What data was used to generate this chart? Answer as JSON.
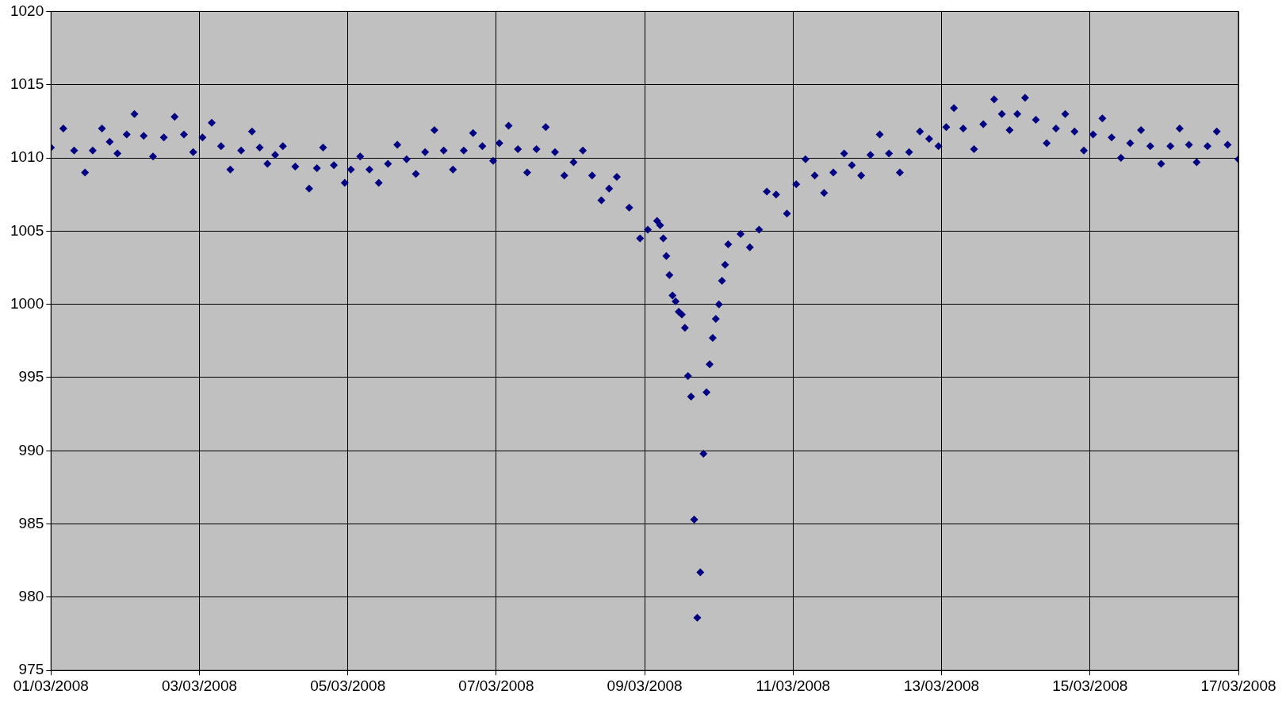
{
  "chart_data": {
    "type": "scatter",
    "marker": "diamond",
    "grid": true,
    "xlim": [
      "2008-03-01",
      "2008-03-17"
    ],
    "xticks": [
      {
        "value": "2008-03-01",
        "label": "01/03/2008"
      },
      {
        "value": "2008-03-03",
        "label": "03/03/2008"
      },
      {
        "value": "2008-03-05",
        "label": "05/03/2008"
      },
      {
        "value": "2008-03-07",
        "label": "07/03/2008"
      },
      {
        "value": "2008-03-09",
        "label": "09/03/2008"
      },
      {
        "value": "2008-03-11",
        "label": "11/03/2008"
      },
      {
        "value": "2008-03-13",
        "label": "13/03/2008"
      },
      {
        "value": "2008-03-15",
        "label": "15/03/2008"
      },
      {
        "value": "2008-03-17",
        "label": "17/03/2008"
      }
    ],
    "ylim": [
      975,
      1020
    ],
    "yticks": [
      975,
      980,
      985,
      990,
      995,
      1000,
      1005,
      1010,
      1015,
      1020
    ],
    "series": [
      {
        "color": "#000080",
        "x": [
          "2008-03-01T00:00",
          "2008-03-01T04:00",
          "2008-03-01T07:30",
          "2008-03-01T11:00",
          "2008-03-01T13:30",
          "2008-03-01T16:30",
          "2008-03-01T19:00",
          "2008-03-01T21:30",
          "2008-03-02T00:30",
          "2008-03-02T03:00",
          "2008-03-02T06:00",
          "2008-03-02T09:00",
          "2008-03-02T12:30",
          "2008-03-02T16:00",
          "2008-03-02T19:00",
          "2008-03-02T22:00",
          "2008-03-03T01:00",
          "2008-03-03T04:00",
          "2008-03-03T07:00",
          "2008-03-03T10:00",
          "2008-03-03T13:30",
          "2008-03-03T17:00",
          "2008-03-03T19:30",
          "2008-03-03T22:00",
          "2008-03-04T00:30",
          "2008-03-04T03:00",
          "2008-03-04T07:00",
          "2008-03-04T11:30",
          "2008-03-04T14:00",
          "2008-03-04T16:00",
          "2008-03-04T19:30",
          "2008-03-04T23:00",
          "2008-03-05T01:00",
          "2008-03-05T04:00",
          "2008-03-05T07:00",
          "2008-03-05T10:00",
          "2008-03-05T13:00",
          "2008-03-05T16:00",
          "2008-03-05T19:00",
          "2008-03-05T22:00",
          "2008-03-06T01:00",
          "2008-03-06T04:00",
          "2008-03-06T07:00",
          "2008-03-06T10:00",
          "2008-03-06T13:30",
          "2008-03-06T16:30",
          "2008-03-06T19:30",
          "2008-03-06T23:00",
          "2008-03-07T01:00",
          "2008-03-07T04:00",
          "2008-03-07T07:00",
          "2008-03-07T10:00",
          "2008-03-07T13:00",
          "2008-03-07T16:00",
          "2008-03-07T19:00",
          "2008-03-07T22:00",
          "2008-03-08T01:00",
          "2008-03-08T04:00",
          "2008-03-08T07:00",
          "2008-03-08T10:00",
          "2008-03-08T12:30",
          "2008-03-08T15:00",
          "2008-03-08T19:00",
          "2008-03-08T22:30",
          "2008-03-09T01:00",
          "2008-03-09T04:00",
          "2008-03-09T05:00",
          "2008-03-09T06:00",
          "2008-03-09T07:00",
          "2008-03-09T08:00",
          "2008-03-09T09:00",
          "2008-03-09T10:00",
          "2008-03-09T11:00",
          "2008-03-09T12:00",
          "2008-03-09T13:00",
          "2008-03-09T14:00",
          "2008-03-09T15:00",
          "2008-03-09T16:00",
          "2008-03-09T17:00",
          "2008-03-09T18:00",
          "2008-03-09T19:00",
          "2008-03-09T20:00",
          "2008-03-09T21:00",
          "2008-03-09T22:00",
          "2008-03-09T23:00",
          "2008-03-10T00:00",
          "2008-03-10T01:00",
          "2008-03-10T02:00",
          "2008-03-10T03:00",
          "2008-03-10T07:00",
          "2008-03-10T10:00",
          "2008-03-10T13:00",
          "2008-03-10T15:30",
          "2008-03-10T18:30",
          "2008-03-10T22:00",
          "2008-03-11T01:00",
          "2008-03-11T04:00",
          "2008-03-11T07:00",
          "2008-03-11T10:00",
          "2008-03-11T13:00",
          "2008-03-11T16:30",
          "2008-03-11T19:00",
          "2008-03-11T22:00",
          "2008-03-12T01:00",
          "2008-03-12T04:00",
          "2008-03-12T07:00",
          "2008-03-12T10:30",
          "2008-03-12T13:30",
          "2008-03-12T17:00",
          "2008-03-12T20:00",
          "2008-03-12T23:00",
          "2008-03-13T01:30",
          "2008-03-13T04:00",
          "2008-03-13T07:00",
          "2008-03-13T10:30",
          "2008-03-13T13:30",
          "2008-03-13T17:00",
          "2008-03-13T19:30",
          "2008-03-13T22:00",
          "2008-03-14T00:30",
          "2008-03-14T03:00",
          "2008-03-14T06:30",
          "2008-03-14T10:00",
          "2008-03-14T13:00",
          "2008-03-14T16:00",
          "2008-03-14T19:00",
          "2008-03-14T22:00",
          "2008-03-15T01:00",
          "2008-03-15T04:00",
          "2008-03-15T07:00",
          "2008-03-15T10:00",
          "2008-03-15T13:00",
          "2008-03-15T16:30",
          "2008-03-15T19:30",
          "2008-03-15T23:00",
          "2008-03-16T02:00",
          "2008-03-16T05:00",
          "2008-03-16T08:00",
          "2008-03-16T10:30",
          "2008-03-16T14:00",
          "2008-03-16T17:00",
          "2008-03-16T20:30",
          "2008-03-17T00:00"
        ],
        "values": [
          1010.7,
          1012.0,
          1010.5,
          1009.0,
          1010.5,
          1012.0,
          1011.1,
          1010.3,
          1011.6,
          1013.0,
          1011.5,
          1010.1,
          1011.4,
          1012.8,
          1011.6,
          1010.4,
          1011.4,
          1012.4,
          1010.8,
          1009.2,
          1010.5,
          1011.8,
          1010.7,
          1009.6,
          1010.2,
          1010.8,
          1009.4,
          1007.9,
          1009.3,
          1010.7,
          1009.5,
          1008.3,
          1009.2,
          1010.1,
          1009.2,
          1008.3,
          1009.6,
          1010.9,
          1009.9,
          1008.9,
          1010.4,
          1011.9,
          1010.5,
          1009.2,
          1010.5,
          1011.7,
          1010.8,
          1009.8,
          1011.0,
          1012.2,
          1010.6,
          1009.0,
          1010.6,
          1012.1,
          1010.4,
          1008.8,
          1009.7,
          1010.5,
          1008.8,
          1007.1,
          1007.9,
          1008.7,
          1006.6,
          1004.5,
          1005.1,
          1005.7,
          1005.4,
          1004.5,
          1003.3,
          1002.0,
          1000.6,
          1000.2,
          999.5,
          999.3,
          998.4,
          995.1,
          993.7,
          985.3,
          978.6,
          981.7,
          989.8,
          994.0,
          995.9,
          997.7,
          999.0,
          1000.0,
          1001.6,
          1002.7,
          1004.1,
          1004.8,
          1003.9,
          1005.1,
          1007.7,
          1007.5,
          1006.2,
          1008.2,
          1009.9,
          1008.8,
          1007.6,
          1009.0,
          1010.3,
          1009.5,
          1008.8,
          1010.2,
          1011.6,
          1010.3,
          1009.0,
          1010.4,
          1011.8,
          1011.3,
          1010.8,
          1012.1,
          1013.4,
          1012.0,
          1010.6,
          1012.3,
          1014.0,
          1013.0,
          1011.9,
          1013.0,
          1014.1,
          1012.6,
          1011.0,
          1012.0,
          1013.0,
          1011.8,
          1010.5,
          1011.6,
          1012.7,
          1011.4,
          1010.0,
          1011.0,
          1011.9,
          1010.8,
          1009.6,
          1010.8,
          1012.0,
          1010.9,
          1009.7,
          1010.8,
          1011.8,
          1010.9,
          1009.9
        ]
      }
    ]
  }
}
